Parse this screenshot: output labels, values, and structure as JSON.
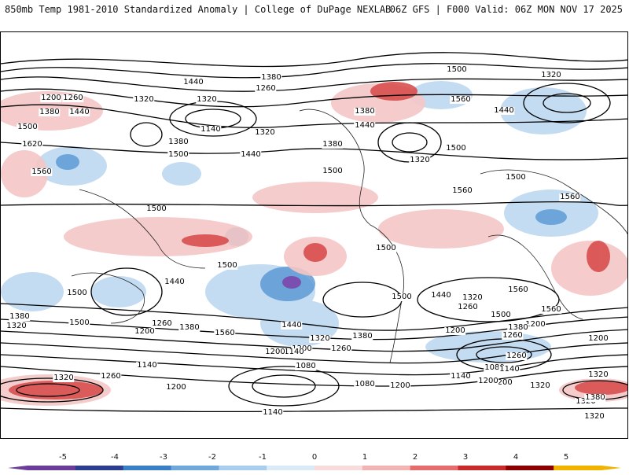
{
  "header": {
    "title_left": "850mb Temp 1981-2010 Standardized Anomaly | College of DuPage NEXLAB",
    "title_right": "06Z GFS | F000 Valid: 06Z MON NOV 17 2025"
  },
  "colorbar": {
    "ticks": [
      "-5",
      "-4",
      "-3",
      "-2",
      "-1",
      "0",
      "1",
      "2",
      "3",
      "4",
      "5"
    ],
    "colors": [
      "#6a3d9a",
      "#2d3e8f",
      "#3b7fc4",
      "#6ea8dc",
      "#a9cdee",
      "#dbeaf7",
      "#f7dcdc",
      "#f2b3b3",
      "#e56d6d",
      "#c92a2a",
      "#8b0000",
      "#f0b400"
    ]
  },
  "contour_labels": [
    "1440",
    "1380",
    "1320",
    "1260",
    "1200",
    "1380",
    "1440",
    "1500",
    "1620",
    "1560",
    "1320",
    "1260",
    "1140",
    "1380",
    "1500",
    "1320",
    "1440",
    "1500",
    "1380",
    "1440",
    "1380",
    "1500",
    "1320",
    "1440",
    "1560",
    "1500",
    "1560",
    "1320",
    "1500",
    "1560",
    "1500",
    "1500",
    "1440",
    "1500",
    "1500",
    "1500",
    "1440",
    "1500",
    "1380",
    "1320",
    "1200",
    "1260",
    "1380",
    "1560",
    "1440",
    "1320",
    "1380",
    "1260",
    "1200",
    "1140",
    "1200",
    "1080",
    "1140",
    "1080",
    "1200",
    "1200",
    "1140",
    "1080",
    "1200",
    "1260",
    "1320",
    "1260",
    "1200",
    "1140",
    "1320",
    "1200",
    "1320",
    "1500",
    "1560",
    "1380",
    "1260",
    "1200",
    "1380",
    "1320",
    "1320",
    "1320",
    "1260",
    "1200",
    "1140",
    "1560"
  ]
}
